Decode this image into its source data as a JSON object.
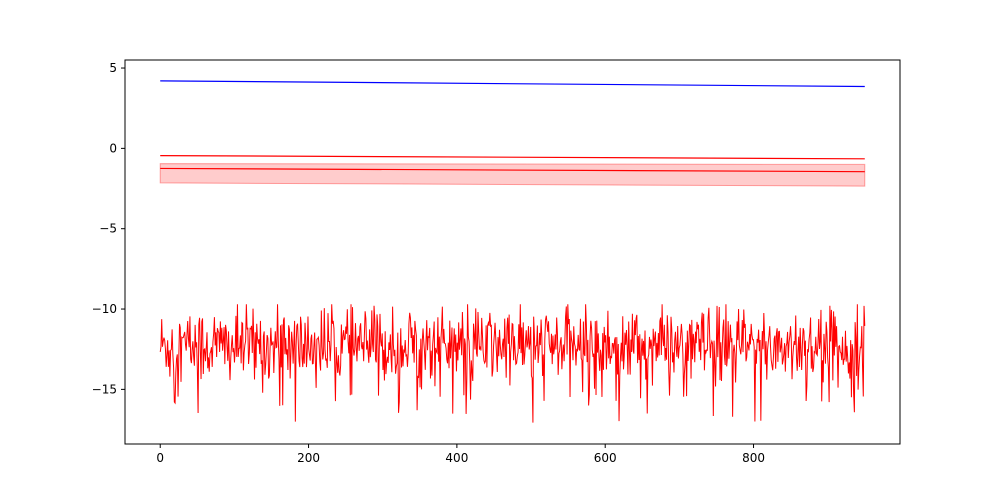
{
  "chart_data": {
    "type": "line",
    "title": "",
    "xlabel": "",
    "ylabel": "",
    "xlim": [
      -47.5,
      997.5
    ],
    "ylim": [
      -18.4,
      5.5
    ],
    "x_ticks": [
      0,
      200,
      400,
      600,
      800
    ],
    "y_ticks": [
      5,
      0,
      -5,
      -10,
      -15
    ],
    "y_tick_labels": [
      "5",
      "0",
      "−5",
      "−10",
      "−15"
    ],
    "grid": false,
    "legend": "none",
    "series": [
      {
        "kind": "line",
        "color": "#0000ff",
        "x": [
          0,
          950
        ],
        "y": [
          4.2,
          3.85
        ]
      },
      {
        "kind": "line",
        "color": "#ff0000",
        "x": [
          0,
          950
        ],
        "y": [
          -0.45,
          -0.65
        ]
      },
      {
        "kind": "band",
        "color": "#ff0000",
        "fill_opacity": 0.2,
        "x": [
          0,
          950
        ],
        "upper": [
          -0.95,
          -1.0
        ],
        "lower": [
          -2.15,
          -2.35
        ]
      },
      {
        "kind": "line",
        "color": "#ff0000",
        "x": [
          0,
          950
        ],
        "y": [
          -1.25,
          -1.45
        ]
      },
      {
        "kind": "noisy-line",
        "color": "#ff0000",
        "n_points": 950,
        "x_start": 0,
        "x_end": 950,
        "mean": -12.3,
        "min": -17.4,
        "max": -9.7,
        "approx_std": 1.2
      }
    ]
  }
}
